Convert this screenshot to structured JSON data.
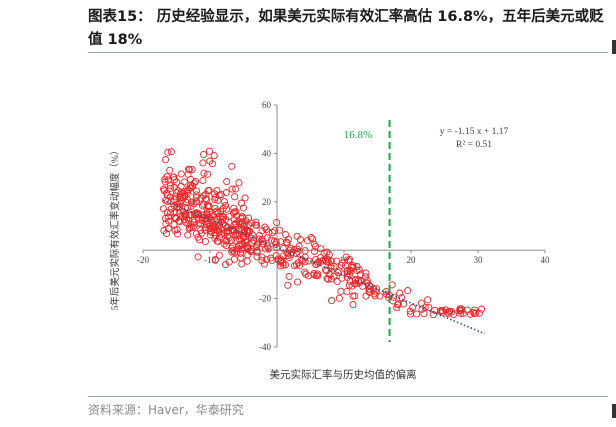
{
  "header": {
    "title": "图表15：  历史经验显示，如果美元实际有效汇率高估  16.8%，五年后美元或贬值 18%"
  },
  "footer": {
    "source": "资料来源：Haver，华泰研究"
  },
  "chart_data": {
    "type": "scatter",
    "xlabel": "美元实际汇率与历史均值的偏离",
    "ylabel": "5年后美元实际有效汇率变动幅度（%）",
    "xlim": [
      -20,
      40
    ],
    "ylim": [
      -40,
      60
    ],
    "xticks": [
      "-20",
      "-10",
      "0",
      "10",
      "20",
      "30",
      "40"
    ],
    "yticks": [
      "60",
      "40",
      "20",
      "0",
      "-20",
      "-40"
    ],
    "vline": {
      "x": 16.8,
      "label": "16.8%",
      "color": "#1aa84a"
    },
    "trendline": {
      "slope": -1.15,
      "intercept": 1.17,
      "color": "#2f4f8f"
    },
    "annotation": {
      "equation": "y = -1.15 x + 1.17",
      "r2": "R² = 0.51"
    },
    "marker_color": "#e8272a",
    "point_count": 560,
    "seed": 20240517
  }
}
